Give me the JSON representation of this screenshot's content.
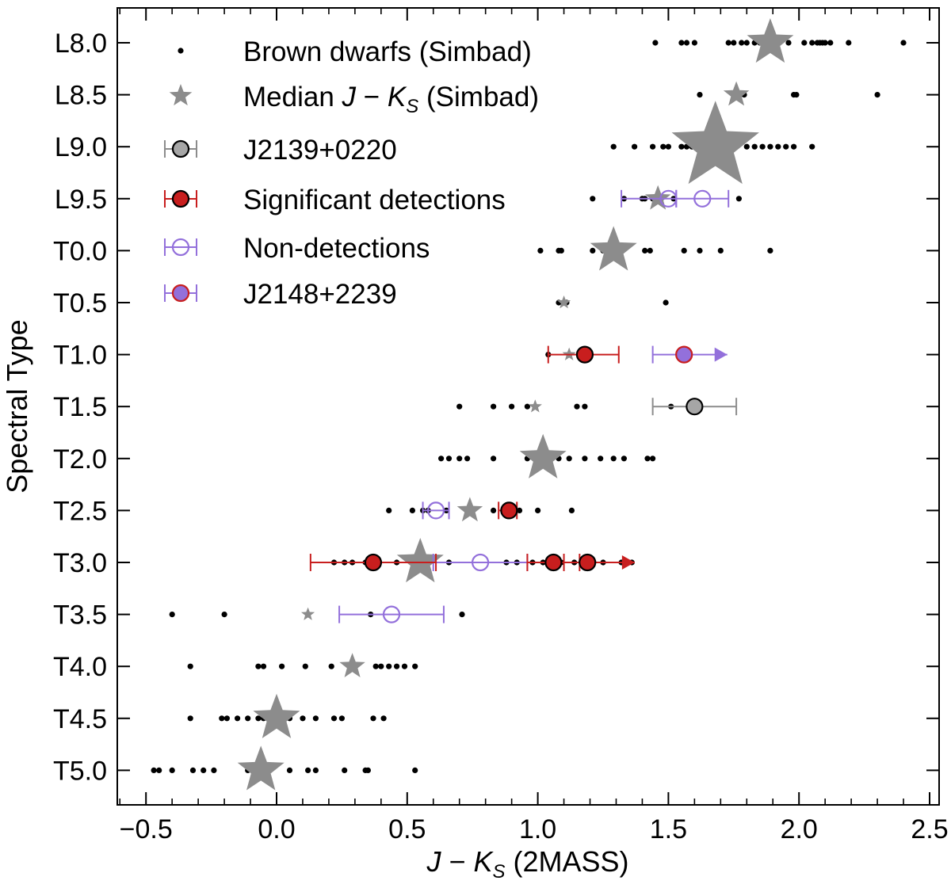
{
  "chart_data": {
    "type": "scatter",
    "xlabel_parts": {
      "var1": "J",
      "minus": " − ",
      "var2": "K",
      "sub": "S",
      "rest": " (2MASS)"
    },
    "ylabel": "Spectral Type",
    "xlim": [
      -0.62,
      2.55
    ],
    "x_ticks": [
      -0.5,
      0.0,
      0.5,
      1.0,
      1.5,
      2.0,
      2.5
    ],
    "x_tick_labels": [
      "−0.5",
      "0.0",
      "0.5",
      "1.0",
      "1.5",
      "2.0",
      "2.5"
    ],
    "categories": [
      "L8.0",
      "L8.5",
      "L9.0",
      "L9.5",
      "T0.0",
      "T0.5",
      "T1.0",
      "T1.5",
      "T2.0",
      "T2.5",
      "T3.0",
      "T3.5",
      "T4.0",
      "T4.5",
      "T5.0"
    ],
    "legend": {
      "brown_dwarfs": "Brown dwarfs (Simbad)",
      "median": {
        "prefix": "Median ",
        "var1": "J",
        "minus": " − ",
        "var2": "K",
        "sub": "S",
        "suffix": " (Simbad)"
      },
      "j2139": "J2139+0220",
      "significant": "Significant detections",
      "nondetections": "Non-detections",
      "j2148": "J2148+2239"
    },
    "colors": {
      "dot": "#000000",
      "median_star": "#8c8c8c",
      "j2139_fill": "#a6a6a6",
      "significant": "#c81e1e",
      "nondetection": "#9370db",
      "j2148_fill": "#9370db"
    },
    "brown_dwarfs": [
      {
        "type": "L8.0",
        "x": [
          1.45,
          1.55,
          1.57,
          1.6,
          1.73,
          1.75,
          1.78,
          1.8,
          1.83,
          1.85,
          1.88,
          1.92,
          1.96,
          2.02,
          2.05,
          2.07,
          2.08,
          2.09,
          2.1,
          2.12,
          2.19,
          2.4
        ]
      },
      {
        "type": "L8.5",
        "x": [
          1.62,
          1.75,
          1.77,
          1.79,
          1.98,
          1.99,
          2.3
        ]
      },
      {
        "type": "L9.0",
        "x": [
          1.29,
          1.37,
          1.44,
          1.48,
          1.5,
          1.55,
          1.57,
          1.59,
          1.62,
          1.64,
          1.66,
          1.67,
          1.68,
          1.7,
          1.72,
          1.73,
          1.75,
          1.8,
          1.83,
          1.86,
          1.89,
          1.92,
          1.95,
          1.98,
          2.05
        ]
      },
      {
        "type": "L9.5",
        "x": [
          1.21,
          1.33,
          1.4,
          1.41,
          1.44,
          1.52,
          1.77
        ]
      },
      {
        "type": "T0.0",
        "x": [
          1.01,
          1.08,
          1.09,
          1.21,
          1.25,
          1.27,
          1.32,
          1.41,
          1.43,
          1.56,
          1.62,
          1.7,
          1.89
        ]
      },
      {
        "type": "T0.5",
        "x": [
          1.08,
          1.1,
          1.11,
          1.49
        ]
      },
      {
        "type": "T1.0",
        "x": [
          1.04,
          1.12,
          1.2
        ]
      },
      {
        "type": "T1.5",
        "x": [
          0.7,
          0.83,
          0.9,
          0.96,
          1.15,
          1.18,
          1.51
        ]
      },
      {
        "type": "T2.0",
        "x": [
          0.63,
          0.66,
          0.7,
          0.73,
          0.83,
          0.96,
          1.02,
          1.04,
          1.08,
          1.12,
          1.18,
          1.24,
          1.29,
          1.33,
          1.42,
          1.44
        ]
      },
      {
        "type": "T2.5",
        "x": [
          0.43,
          0.52,
          0.56,
          0.58,
          0.65,
          0.83,
          0.87,
          0.91,
          0.93,
          1.0,
          1.13
        ]
      },
      {
        "type": "T3.0",
        "x": [
          0.22,
          0.26,
          0.29,
          0.34,
          0.46,
          0.58,
          0.66,
          0.88,
          0.92,
          0.98,
          1.02,
          1.09,
          1.14,
          1.25,
          1.32,
          1.36
        ]
      },
      {
        "type": "T3.5",
        "x": [
          -0.4,
          -0.2,
          0.12,
          0.36,
          0.71
        ]
      },
      {
        "type": "T4.0",
        "x": [
          -0.33,
          -0.07,
          -0.05,
          0.02,
          0.11,
          0.21,
          0.28,
          0.29,
          0.3,
          0.38,
          0.4,
          0.43,
          0.46,
          0.49,
          0.53
        ]
      },
      {
        "type": "T4.5",
        "x": [
          -0.33,
          -0.21,
          -0.19,
          -0.15,
          -0.11,
          -0.07,
          -0.05,
          -0.01,
          0.05,
          0.1,
          0.15,
          0.22,
          0.25,
          0.37,
          0.41
        ]
      },
      {
        "type": "T5.0",
        "x": [
          -0.47,
          -0.45,
          -0.4,
          -0.32,
          -0.28,
          -0.24,
          -0.11,
          -0.09,
          -0.05,
          0.05,
          0.12,
          0.15,
          0.26,
          0.34,
          0.35,
          0.53
        ]
      }
    ],
    "medians": [
      {
        "type": "L8.0",
        "x": 1.89,
        "size": 3
      },
      {
        "type": "L8.5",
        "x": 1.76,
        "size": 2
      },
      {
        "type": "L9.0",
        "x": 1.68,
        "size": 4
      },
      {
        "type": "L9.5",
        "x": 1.46,
        "size": 2
      },
      {
        "type": "T0.0",
        "x": 1.29,
        "size": 3
      },
      {
        "type": "T0.5",
        "x": 1.1,
        "size": 1
      },
      {
        "type": "T1.0",
        "x": 1.12,
        "size": 1
      },
      {
        "type": "T1.5",
        "x": 0.99,
        "size": 1
      },
      {
        "type": "T2.0",
        "x": 1.02,
        "size": 3
      },
      {
        "type": "T2.5",
        "x": 0.74,
        "size": 2
      },
      {
        "type": "T3.0",
        "x": 0.55,
        "size": 3
      },
      {
        "type": "T3.5",
        "x": 0.12,
        "size": 1
      },
      {
        "type": "T4.0",
        "x": 0.29,
        "size": 2
      },
      {
        "type": "T4.5",
        "x": 0.0,
        "size": 3
      },
      {
        "type": "T5.0",
        "x": -0.06,
        "size": 3
      }
    ],
    "j2139": [
      {
        "type": "T1.5",
        "x": 1.6,
        "xerr": [
          1.44,
          1.76
        ]
      }
    ],
    "significant_detections": [
      {
        "type": "T1.0",
        "x": 1.18,
        "xerr": [
          1.04,
          1.31
        ]
      },
      {
        "type": "T2.5",
        "x": 0.89,
        "xerr": [
          0.85,
          0.92
        ]
      },
      {
        "type": "T3.0",
        "x": 0.37,
        "xerr": [
          0.13,
          0.61
        ]
      },
      {
        "type": "T3.0",
        "x": 1.06,
        "xerr": [
          0.96,
          1.16
        ]
      },
      {
        "type": "T3.0",
        "x": 1.19,
        "xerr": [
          1.1,
          1.28
        ],
        "lower_limit": true
      }
    ],
    "non_detections": [
      {
        "type": "L9.5",
        "x": 1.5,
        "xerr": [
          1.32,
          1.53
        ]
      },
      {
        "type": "L9.5",
        "x": 1.63,
        "xerr": [
          1.53,
          1.73
        ]
      },
      {
        "type": "T2.5",
        "x": 0.61,
        "xerr": [
          0.56,
          0.66
        ]
      },
      {
        "type": "T3.0",
        "x": 0.78,
        "xerr": [
          0.6,
          0.96
        ]
      },
      {
        "type": "T3.5",
        "x": 0.44,
        "xerr": [
          0.24,
          0.64
        ]
      }
    ],
    "j2148": [
      {
        "type": "T1.0",
        "x": 1.56,
        "xerr": [
          1.44,
          1.68
        ],
        "lower_limit": true
      }
    ]
  }
}
